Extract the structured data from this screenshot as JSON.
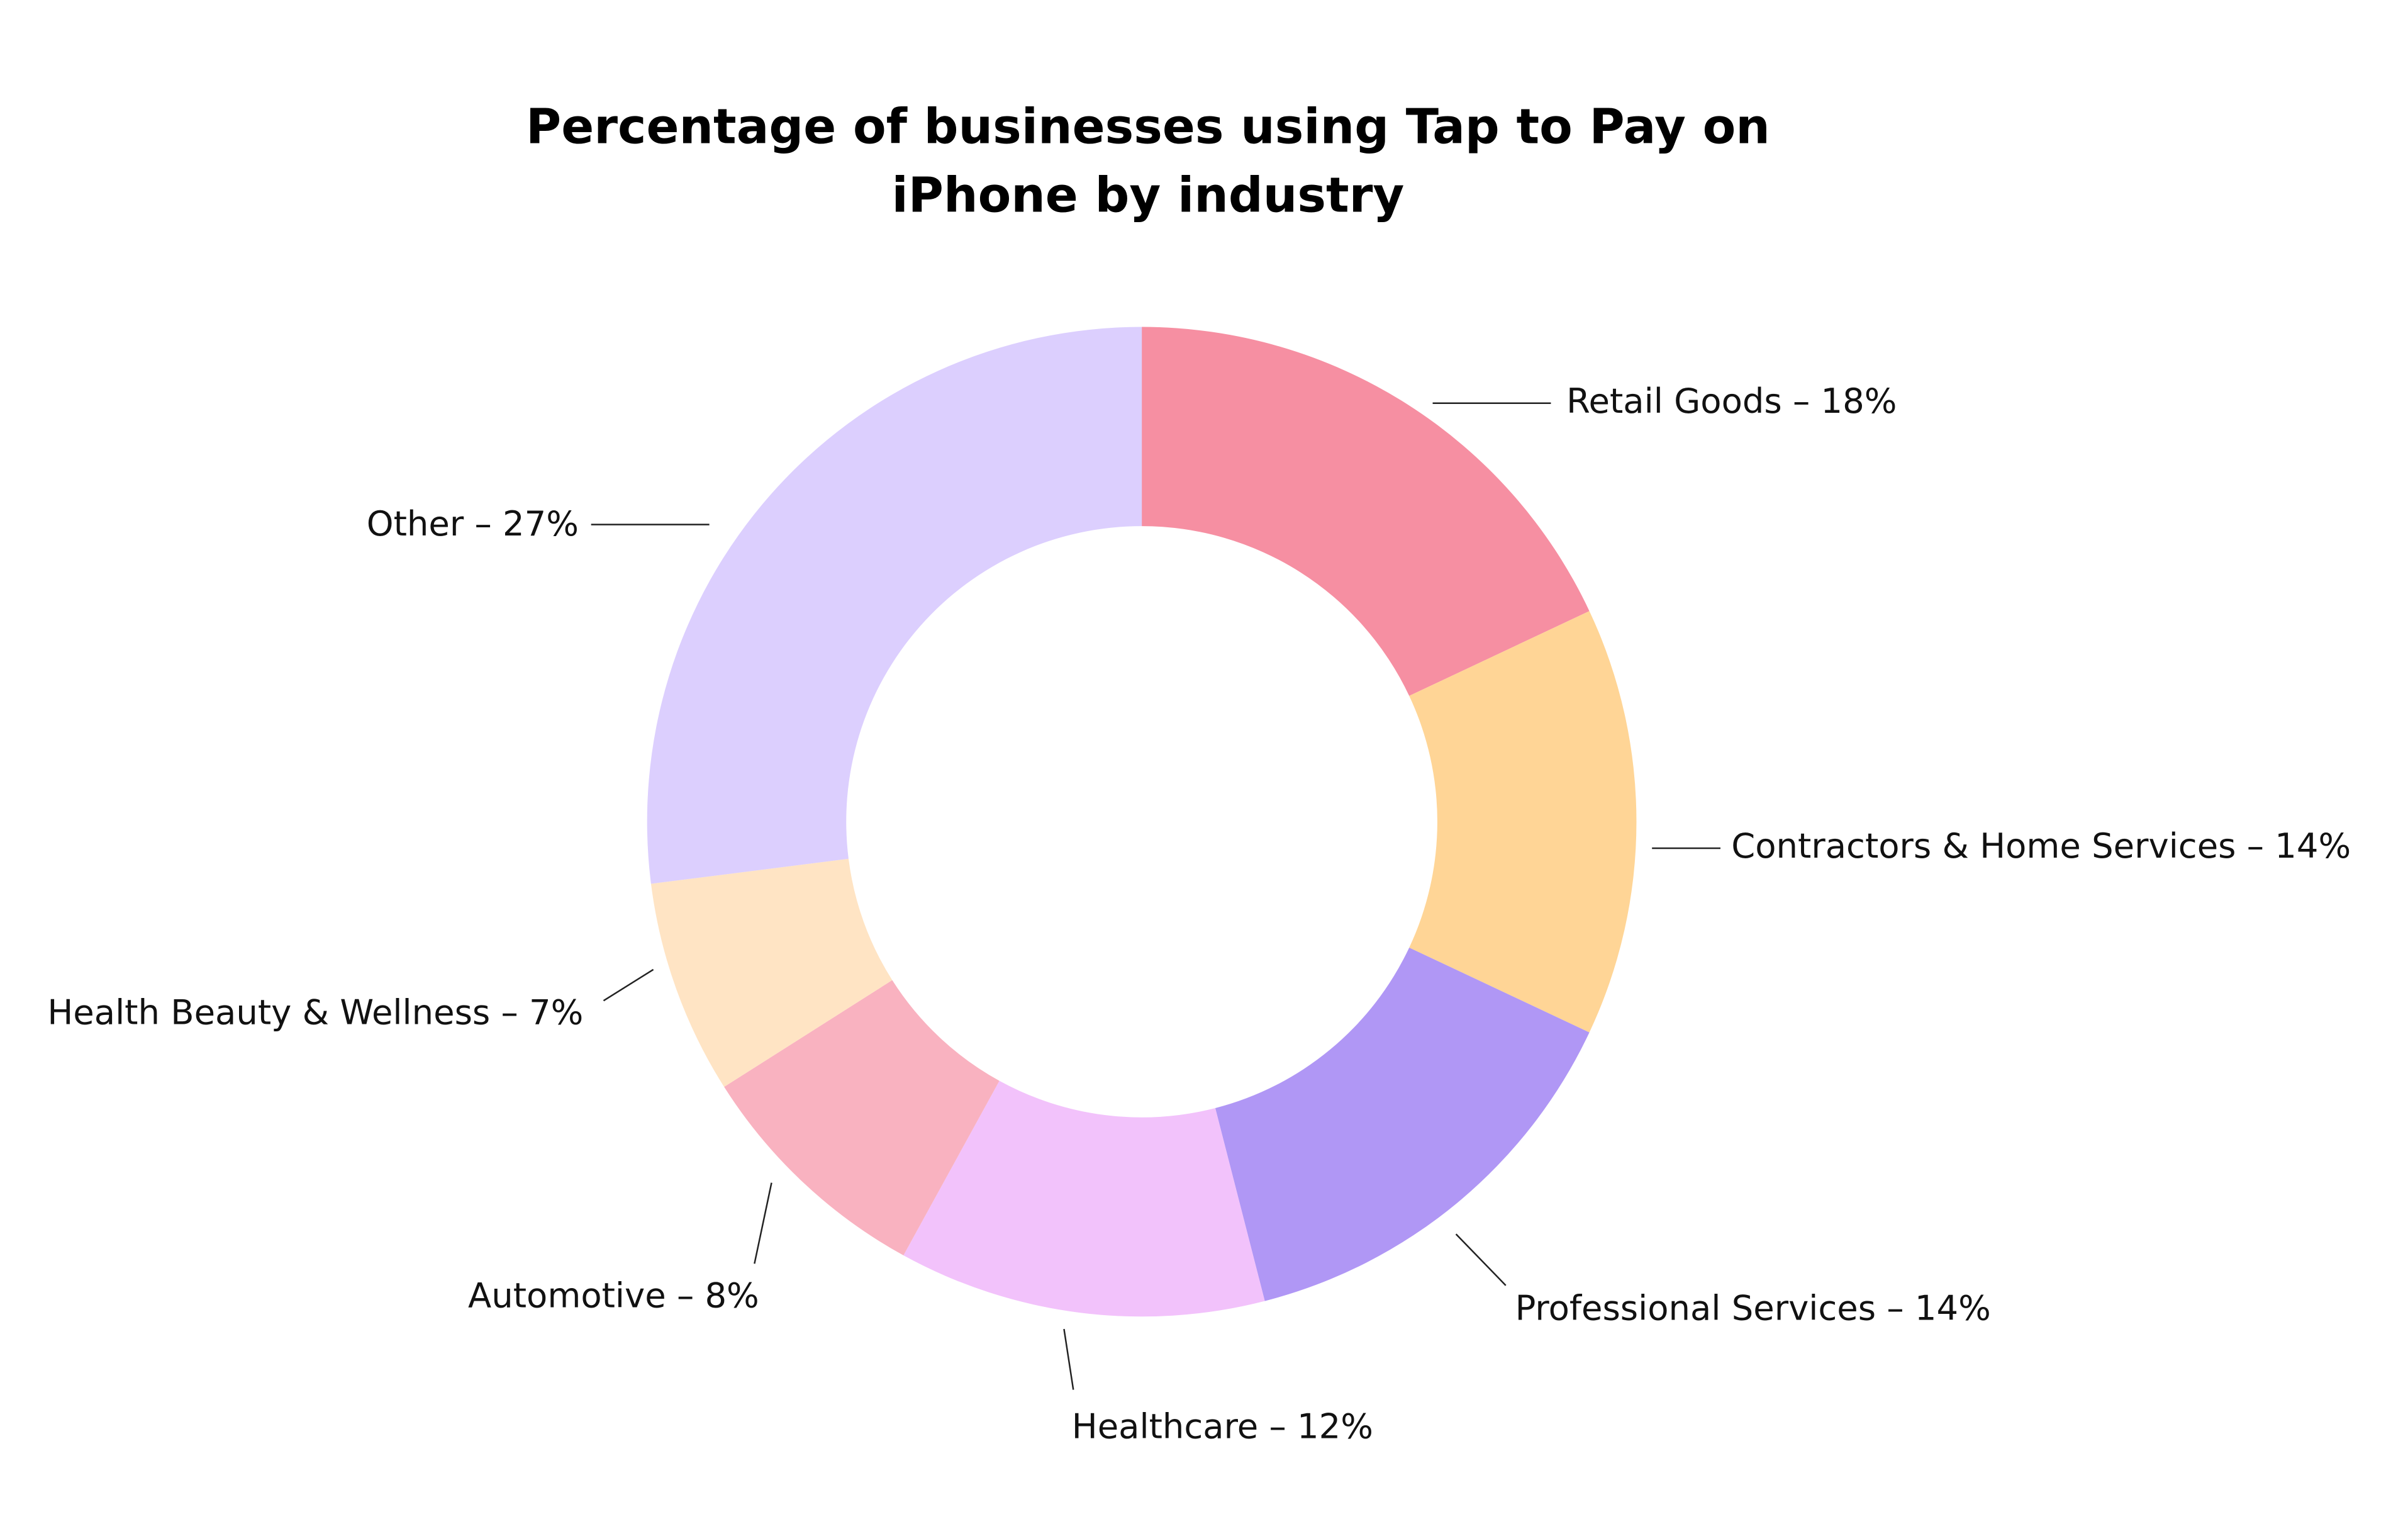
{
  "chart_data": {
    "type": "donut",
    "title": "Percentage of businesses using Tap to Pay on iPhone by industry",
    "categories": [
      "Retail Goods",
      "Contractors & Home Services",
      "Professional Services",
      "Healthcare",
      "Automotive",
      "Health Beauty & Wellness",
      "Other"
    ],
    "values": [
      18,
      14,
      14,
      12,
      8,
      7,
      27
    ],
    "value_labels": [
      "Retail Goods – 18%",
      "Contractors & Home Services – 14%",
      "Professional Services – 14%",
      "Healthcare – 12%",
      "Automotive – 8%",
      "Health Beauty & Wellness – 7%",
      "Other – 27%"
    ],
    "colors": [
      "#f68fa2",
      "#ffd596",
      "#b097f5",
      "#f2c2fb",
      "#f9b2c0",
      "#ffe4c4",
      "#dccffe"
    ]
  }
}
